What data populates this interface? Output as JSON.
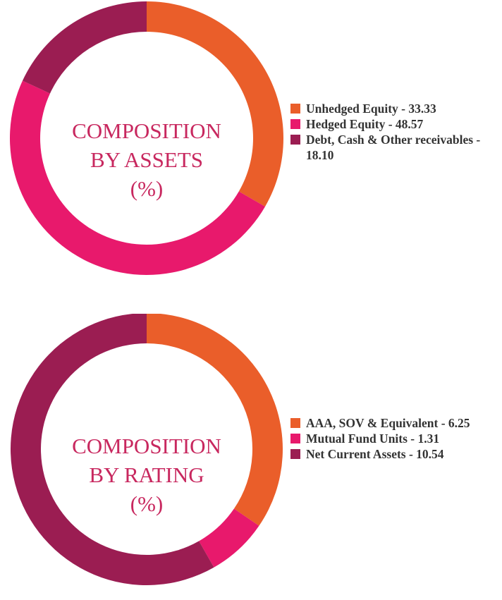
{
  "chart_data": [
    {
      "type": "pie",
      "title_lines": [
        "COMPOSITION",
        "BY ASSETS",
        "(%)"
      ],
      "legend_position": "right",
      "slices": [
        {
          "label": "Unhedged Equity - 33.33",
          "value": 33.33,
          "color": "#ea5e2a"
        },
        {
          "label": "Hedged Equity - 48.57",
          "value": 48.57,
          "color": "#e8196c"
        },
        {
          "label": "Debt, Cash & Other receivables - 18.10",
          "value": 18.1,
          "color": "#9b1d52"
        }
      ]
    },
    {
      "type": "pie",
      "title_lines": [
        "COMPOSITION",
        "BY RATING",
        "(%)"
      ],
      "legend_position": "right",
      "slices": [
        {
          "label": "AAA, SOV & Equivalent - 6.25",
          "value": 6.25,
          "color": "#ea5e2a"
        },
        {
          "label": "Mutual Fund Units - 1.31",
          "value": 1.31,
          "color": "#e8196c"
        },
        {
          "label": "Net Current Assets - 10.54",
          "value": 10.54,
          "color": "#9b1d52"
        }
      ]
    }
  ]
}
